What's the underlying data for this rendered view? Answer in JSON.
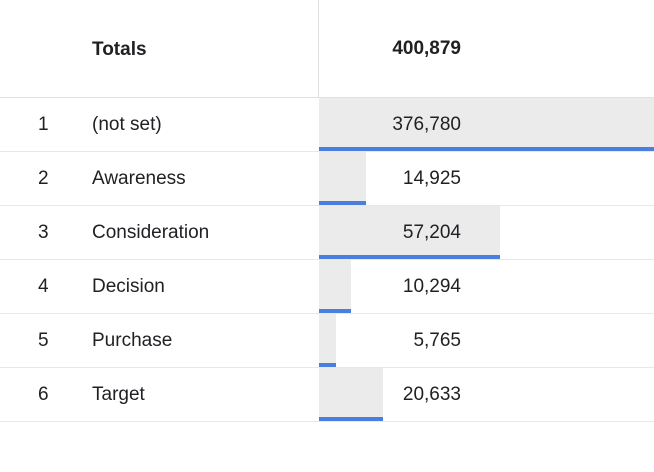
{
  "totals": {
    "label": "Totals",
    "value": "400,879"
  },
  "rows": [
    {
      "index": "1",
      "label": "(not set)",
      "value": "376,780",
      "share": 1.0
    },
    {
      "index": "2",
      "label": "Awareness",
      "value": "14,925",
      "share": 0.14
    },
    {
      "index": "3",
      "label": "Consideration",
      "value": "57,204",
      "share": 0.54
    },
    {
      "index": "4",
      "label": "Decision",
      "value": "10,294",
      "share": 0.095
    },
    {
      "index": "5",
      "label": "Purchase",
      "value": "5,765",
      "share": 0.05
    },
    {
      "index": "6",
      "label": "Target",
      "value": "20,633",
      "share": 0.19
    }
  ],
  "colors": {
    "bar_fill": "#ebebeb",
    "bar_line": "#4a7fe0",
    "divider": "#e0e0e0"
  }
}
